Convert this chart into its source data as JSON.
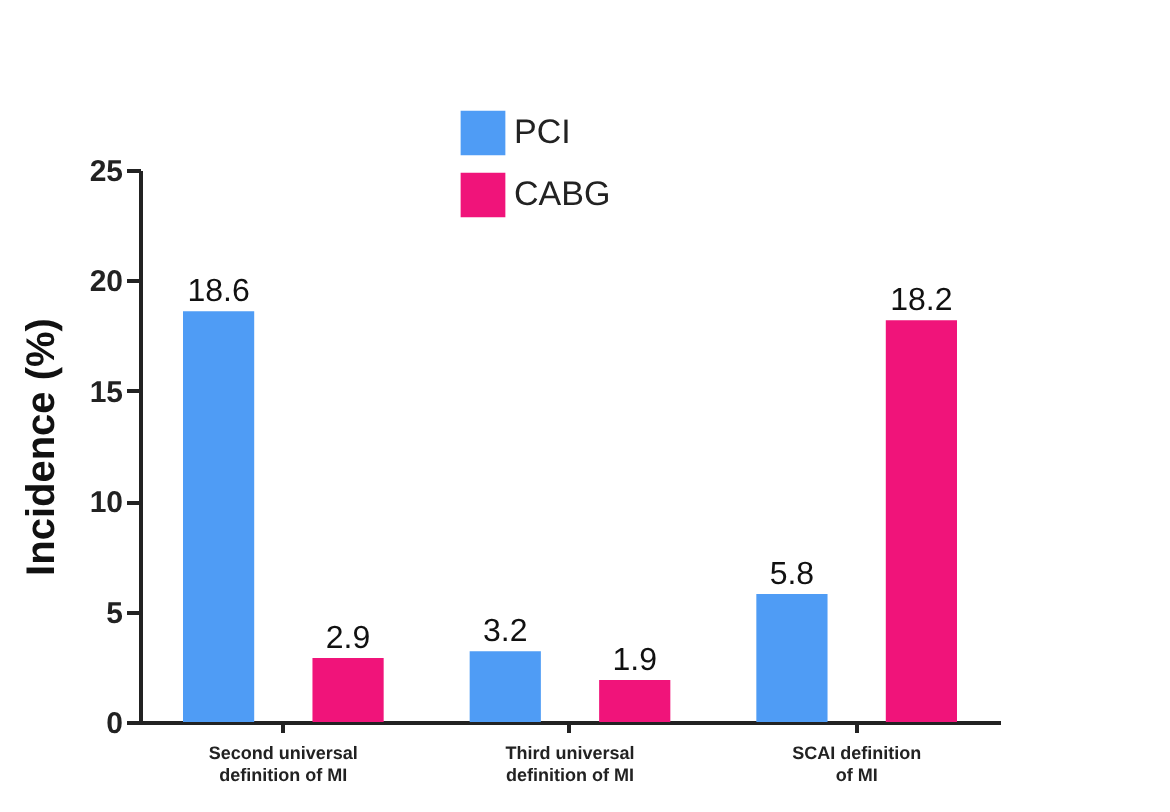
{
  "chart_data": {
    "type": "bar",
    "ylabel": "Incidence (%)",
    "categories": [
      "Second universal definition of MI",
      "Third universal definition of MI",
      "SCAI definition of MI"
    ],
    "series": [
      {
        "name": "PCI",
        "color": "#4f9cf5",
        "values": [
          18.6,
          3.2,
          5.8
        ]
      },
      {
        "name": "CABG",
        "color": "#f0147a",
        "values": [
          2.9,
          1.9,
          18.2
        ]
      }
    ],
    "ylim": [
      0,
      25
    ],
    "yticks": [
      0,
      5,
      10,
      15,
      20,
      25
    ],
    "grid": false,
    "legend": "top",
    "data_labels": true
  }
}
